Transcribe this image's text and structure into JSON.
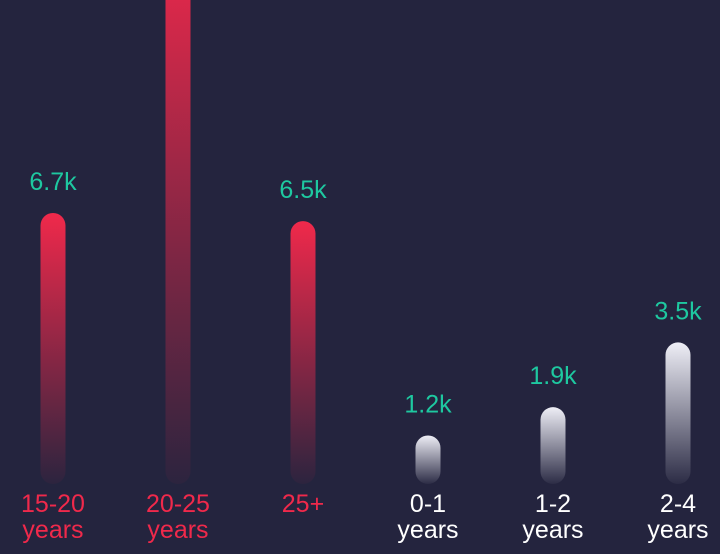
{
  "colors": {
    "background": "#24243e",
    "value_label": "#1ec8a0",
    "red_bar_top": "#f0294b",
    "white_bar_top": "#eeeef6",
    "red_text": "#f0294b",
    "white_text": "#ffffff"
  },
  "chart_data": {
    "type": "bar",
    "categories": [
      [
        "15-20",
        "years"
      ],
      [
        "20-25",
        "years"
      ],
      [
        "25+"
      ],
      [
        "0-1",
        "years"
      ],
      [
        "1-2",
        "years"
      ],
      [
        "2-4",
        "years"
      ]
    ],
    "groups": [
      "red",
      "red",
      "red",
      "white",
      "white",
      "white"
    ],
    "values": [
      6.7,
      13.5,
      6.5,
      1.2,
      1.9,
      3.5
    ],
    "value_labels": [
      "6.7k",
      "",
      "6.5k",
      "1.2k",
      "1.9k",
      "3.5k"
    ],
    "ylim": [
      0,
      13.5
    ],
    "grid": false,
    "legend": "none"
  }
}
